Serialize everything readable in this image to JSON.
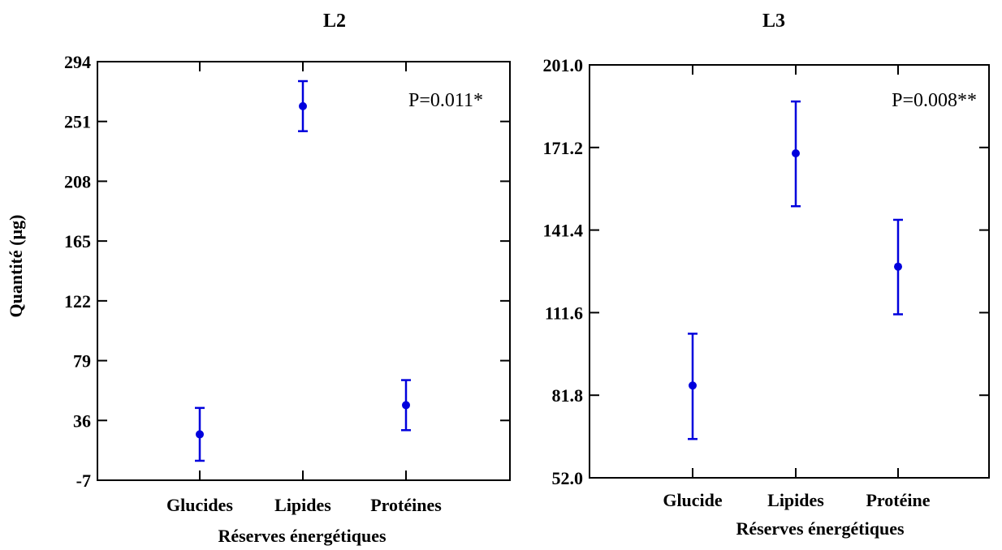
{
  "chart_data": [
    {
      "type": "scatter",
      "title": "L2",
      "xlabel": "Réserves énergétiques",
      "ylabel": "Quantité (µg)",
      "annotation": "P=0.011*",
      "ylim": [
        -7,
        294
      ],
      "yticks": [
        "294",
        "251",
        "208",
        "165",
        "122",
        "79",
        "36",
        "-7"
      ],
      "categories": [
        "Glucides",
        "Lipides",
        "Protéines"
      ],
      "series": [
        {
          "points": [
            {
              "category": "Glucides",
              "mean": 26,
              "low": 7,
              "high": 45
            },
            {
              "category": "Lipides",
              "mean": 262,
              "low": 244,
              "high": 280
            },
            {
              "category": "Protéines",
              "mean": 47,
              "low": 29,
              "high": 65
            }
          ]
        }
      ],
      "colors": {
        "marker": "#0000dd",
        "axis": "#000000"
      },
      "grid": false
    },
    {
      "type": "scatter",
      "title": "L3",
      "xlabel": "Réserves énergétiques",
      "ylabel": "",
      "annotation": "P=0.008**",
      "ylim": [
        52.0,
        201.0
      ],
      "yticks": [
        "201.0",
        "171.2",
        "141.4",
        "111.6",
        "81.8",
        "52.0"
      ],
      "categories": [
        "Glucide",
        "Lipides",
        "Protéine"
      ],
      "series": [
        {
          "points": [
            {
              "category": "Glucide",
              "mean": 85.3,
              "low": 66.0,
              "high": 104.0
            },
            {
              "category": "Lipides",
              "mean": 169.1,
              "low": 150.0,
              "high": 187.8
            },
            {
              "category": "Protéine",
              "mean": 128.2,
              "low": 111.0,
              "high": 145.1
            }
          ]
        }
      ],
      "colors": {
        "marker": "#0000dd",
        "axis": "#000000"
      },
      "grid": false
    }
  ]
}
